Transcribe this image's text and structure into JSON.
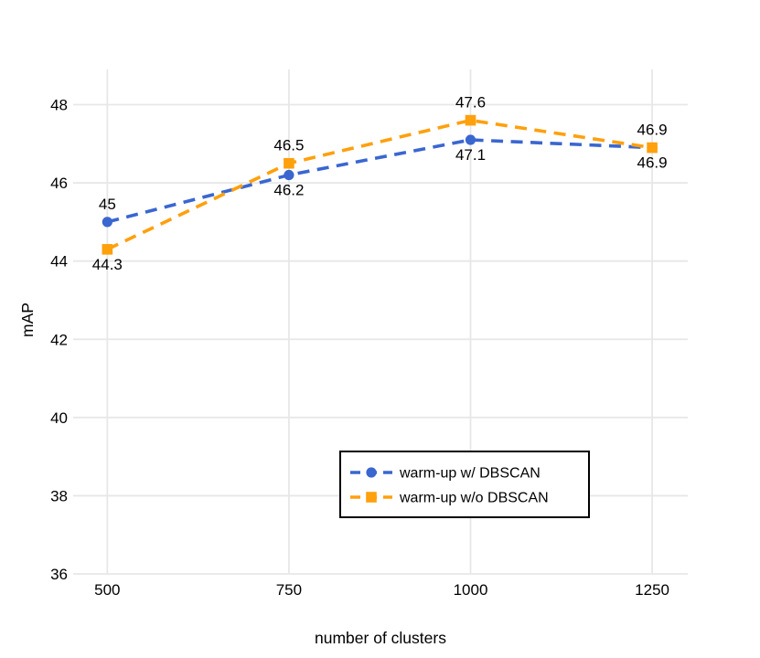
{
  "figure": {
    "background": "#ffffff",
    "grid_color": "#e7e7e7",
    "text_color": "#000000",
    "legend_border_color": "#000000"
  },
  "chart_data": {
    "type": "line",
    "title": "",
    "xlabel": "number of clusters",
    "ylabel": "mAP",
    "x": [
      500,
      750,
      1000,
      1250
    ],
    "xticks": [
      "500",
      "750",
      "1000",
      "1250"
    ],
    "yticks": [
      "36",
      "38",
      "40",
      "42",
      "44",
      "46",
      "48"
    ],
    "ytick_values": [
      36,
      38,
      40,
      42,
      44,
      46,
      48
    ],
    "xlim": [
      453,
      1299
    ],
    "ylim": [
      36,
      48.9
    ],
    "grid": true,
    "legend": {
      "position": "lower-center",
      "border": true
    },
    "series": [
      {
        "name": "warm-up w/ DBSCAN",
        "color": "#3a66d0",
        "marker": "circle",
        "line_style": "dashed",
        "values": [
          45,
          46.2,
          47.1,
          46.9
        ],
        "point_labels": [
          "45",
          "46.2",
          "47.1",
          "46.9"
        ],
        "label_side": [
          "above",
          "below",
          "below",
          "below"
        ]
      },
      {
        "name": "warm-up w/o DBSCAN",
        "color": "#ffa00d",
        "marker": "square",
        "line_style": "dashed",
        "values": [
          44.3,
          46.5,
          47.6,
          46.9
        ],
        "point_labels": [
          "44.3",
          "46.5",
          "47.6",
          "46.9"
        ],
        "label_side": [
          "below",
          "above",
          "above",
          "above"
        ]
      }
    ]
  }
}
